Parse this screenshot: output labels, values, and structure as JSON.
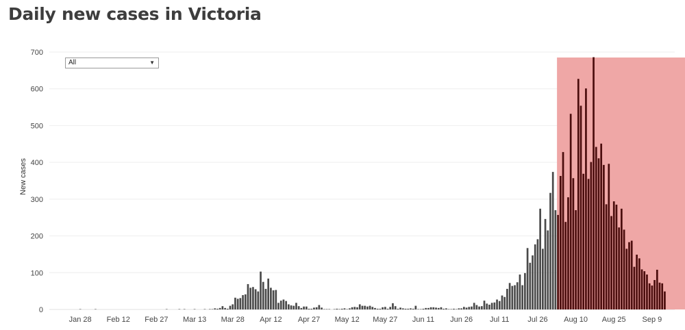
{
  "page": {
    "title": "Daily new cases in Victoria"
  },
  "filter": {
    "selected": "All",
    "arrow_icon": "caret-down-icon"
  },
  "chart_data": {
    "type": "bar",
    "title": "Daily new cases in Victoria",
    "xlabel": "",
    "ylabel": "New cases",
    "ylim": [
      0,
      700
    ],
    "yticks": [
      0,
      100,
      200,
      300,
      400,
      500,
      600,
      700
    ],
    "xticks": [
      "Jan 28",
      "Feb 12",
      "Feb 27",
      "Mar 13",
      "Mar 28",
      "Apr 12",
      "Apr 27",
      "May 12",
      "May 27",
      "Jun 11",
      "Jun 26",
      "Jul 11",
      "Jul 26",
      "Aug 10",
      "Aug 25",
      "Sep 9"
    ],
    "grid": true,
    "bar_color": "#4a4a4a",
    "highlight": {
      "from_day": 191,
      "to_day": 235,
      "color": "#efa7a6",
      "bar_color": "#4b0d0d"
    },
    "start_date": "Jan 25",
    "values": [
      0,
      0,
      0,
      1,
      0,
      0,
      0,
      0,
      0,
      1,
      0,
      0,
      0,
      0,
      0,
      0,
      0,
      0,
      0,
      0,
      0,
      0,
      0,
      0,
      0,
      0,
      0,
      0,
      0,
      0,
      0,
      0,
      0,
      0,
      0,
      0,
      0,
      1,
      0,
      0,
      0,
      0,
      1,
      0,
      1,
      0,
      0,
      0,
      1,
      0,
      0,
      0,
      1,
      0,
      1,
      1,
      3,
      2,
      4,
      9,
      4,
      2,
      10,
      14,
      32,
      29,
      31,
      39,
      41,
      69,
      59,
      61,
      55,
      49,
      103,
      75,
      56,
      84,
      59,
      52,
      53,
      18,
      24,
      27,
      23,
      14,
      11,
      10,
      18,
      9,
      4,
      8,
      8,
      2,
      2,
      5,
      6,
      12,
      5,
      1,
      1,
      1,
      0,
      1,
      2,
      1,
      2,
      3,
      1,
      3,
      6,
      7,
      6,
      14,
      10,
      10,
      8,
      10,
      7,
      4,
      2,
      2,
      6,
      7,
      2,
      7,
      17,
      9,
      2,
      5,
      3,
      2,
      2,
      3,
      2,
      10,
      1,
      1,
      2,
      4,
      4,
      6,
      6,
      5,
      4,
      6,
      2,
      3,
      1,
      1,
      2,
      1,
      3,
      3,
      7,
      5,
      7,
      8,
      18,
      12,
      8,
      9,
      24,
      16,
      13,
      18,
      19,
      27,
      23,
      38,
      34,
      56,
      72,
      64,
      66,
      74,
      95,
      66,
      99,
      167,
      127,
      147,
      177,
      191,
      274,
      165,
      246,
      215,
      317,
      374,
      270,
      257,
      363,
      428,
      238,
      305,
      532,
      357,
      270,
      627,
      554,
      369,
      601,
      355,
      401,
      686,
      442,
      411,
      451,
      393,
      286,
      396,
      254,
      294,
      285,
      223,
      274,
      217,
      165,
      183,
      187,
      116,
      149,
      139,
      109,
      104,
      95,
      71,
      65,
      80,
      108,
      73,
      71,
      49
    ]
  }
}
